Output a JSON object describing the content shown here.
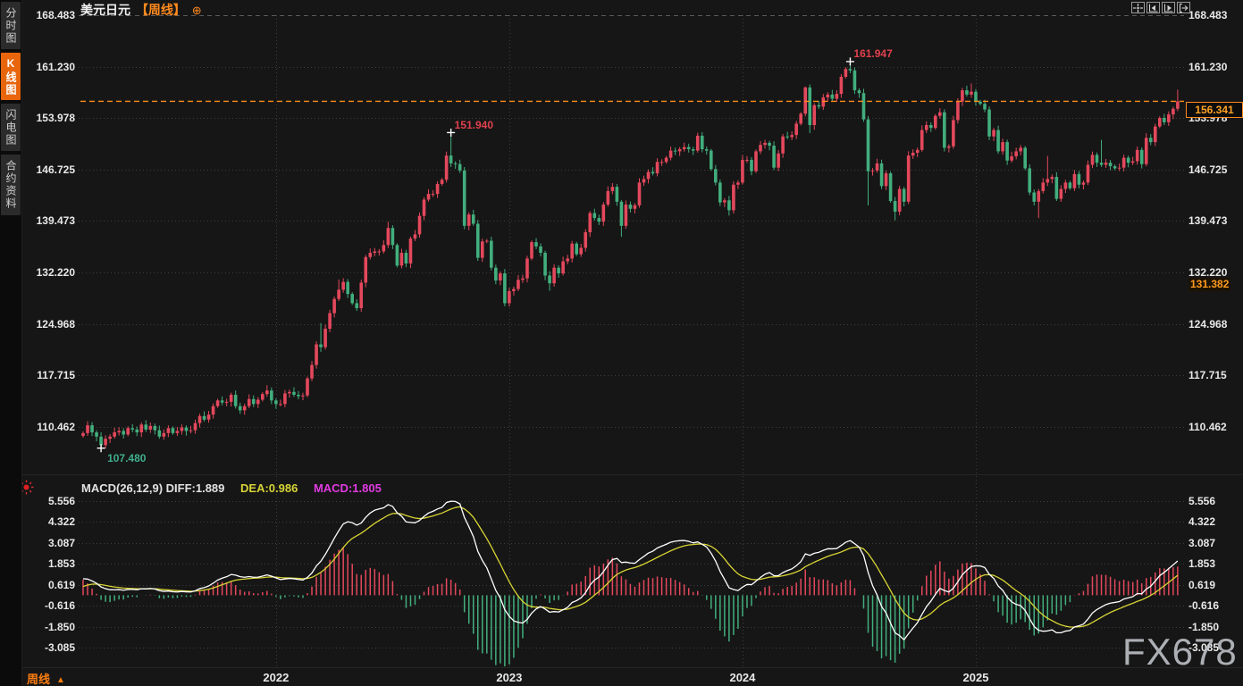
{
  "header": {
    "title": "美元日元",
    "period": "【周线】",
    "add_icon": "⊕"
  },
  "sidebar": {
    "items": [
      {
        "label": "分时图",
        "active": false
      },
      {
        "label": "K线图",
        "active": true
      },
      {
        "label": "闪电图",
        "active": false
      },
      {
        "label": "合约资料",
        "active": false
      }
    ]
  },
  "toolbar": {
    "icons": [
      "move-crosshair",
      "compress-left",
      "compress-right",
      "go-to-latest"
    ]
  },
  "price_axis": {
    "ticks": [
      "168.483",
      "161.230",
      "153.978",
      "146.725",
      "139.473",
      "132.220",
      "124.968",
      "117.715",
      "110.462"
    ],
    "current_price": "156.341",
    "secondary_price": "131.382"
  },
  "macd_axis": {
    "ticks": [
      "5.556",
      "4.322",
      "3.087",
      "1.853",
      "0.619",
      "-0.616",
      "-1.850",
      "-3.085"
    ]
  },
  "macd_status": {
    "name_and_diff": "MACD(26,12,9) DIFF:1.889",
    "dea_label": "DEA:0.986",
    "macd_label": "MACD:1.805"
  },
  "annotations": {
    "high": {
      "week": 171,
      "price": 161.947,
      "label": "161.947"
    },
    "mid_high": {
      "week": 82,
      "price": 151.94,
      "label": "151.940"
    },
    "low": {
      "week": 4,
      "price": 107.48,
      "label": "107.480"
    }
  },
  "bottom": {
    "period_label": "周线",
    "period_arrow": "▲",
    "years": [
      {
        "label": "2022",
        "week": 43
      },
      {
        "label": "2023",
        "week": 95
      },
      {
        "label": "2024",
        "week": 147
      },
      {
        "label": "2025",
        "week": 199
      }
    ]
  },
  "watermark": "FX678",
  "colors": {
    "up": "#e4485c",
    "down": "#42ae7d",
    "accent": "#ff8c1a",
    "diff_line": "#ffffff",
    "dea_line": "#d8d435",
    "macd_text": "#e03ae0",
    "grid": "#3e3e3e",
    "grid_top": "#5a5a5a",
    "axis_text": "#e8e8e8",
    "bg": "#161616"
  },
  "chart_data": {
    "type": "candlestick",
    "symbol": "美元日元",
    "interval": "周线",
    "ylim": [
      110.462,
      168.483
    ],
    "macd_ylim": [
      -3.085,
      5.556
    ],
    "first_open": 109.2,
    "closes": [
      109.6,
      110.7,
      109.7,
      109.1,
      107.9,
      108.8,
      109.1,
      109.7,
      109.9,
      109.4,
      110.3,
      110.1,
      109.7,
      110.8,
      110.1,
      110.6,
      110.0,
      109.1,
      109.6,
      110.3,
      109.6,
      109.9,
      110.4,
      109.9,
      110.0,
      111.0,
      112.0,
      111.5,
      112.2,
      113.4,
      114.2,
      113.9,
      114.0,
      115.0,
      113.4,
      112.8,
      113.4,
      114.4,
      113.7,
      114.3,
      115.1,
      115.6,
      114.2,
      113.7,
      113.7,
      115.2,
      115.4,
      115.0,
      114.8,
      114.9,
      117.3,
      119.2,
      122.1,
      121.7,
      124.3,
      126.5,
      128.5,
      129.8,
      130.9,
      129.2,
      127.9,
      127.2,
      130.8,
      134.4,
      135.0,
      135.2,
      135.2,
      136.1,
      138.5,
      136.1,
      133.2,
      135.0,
      133.5,
      137.0,
      137.6,
      140.2,
      142.5,
      143.3,
      143.3,
      144.7,
      145.3,
      148.7,
      147.6,
      147.5,
      146.6,
      138.8,
      140.4,
      139.1,
      134.3,
      136.6,
      136.7,
      132.9,
      131.1,
      132.1,
      127.9,
      129.6,
      129.9,
      131.2,
      131.4,
      134.2,
      136.5,
      135.9,
      135.0,
      131.8,
      130.7,
      132.9,
      132.1,
      133.8,
      134.2,
      136.3,
      134.8,
      135.7,
      137.9,
      140.6,
      139.9,
      139.4,
      141.8,
      143.7,
      144.3,
      142.2,
      138.8,
      141.8,
      141.2,
      141.7,
      144.9,
      145.4,
      146.4,
      146.2,
      147.8,
      147.8,
      148.4,
      149.4,
      149.3,
      149.6,
      149.9,
      149.6,
      149.4,
      151.5,
      149.6,
      149.4,
      146.8,
      144.9,
      142.1,
      142.4,
      141.0,
      144.6,
      144.9,
      148.1,
      148.1,
      146.5,
      149.3,
      150.2,
      150.5,
      150.1,
      147.0,
      149.0,
      151.4,
      151.3,
      151.6,
      153.2,
      154.6,
      158.3,
      153.0,
      155.8,
      155.6,
      156.9,
      157.3,
      156.7,
      157.4,
      159.8,
      160.9,
      160.7,
      157.9,
      157.5,
      153.8,
      146.5,
      146.6,
      147.6,
      144.4,
      146.2,
      142.3,
      140.8,
      144.0,
      142.2,
      148.7,
      149.1,
      149.5,
      152.3,
      153.0,
      152.6,
      154.3,
      154.8,
      149.8,
      150.0,
      153.7,
      156.3,
      157.9,
      157.3,
      157.7,
      156.3,
      156.0,
      155.2,
      151.4,
      152.3,
      149.3,
      150.6,
      148.0,
      148.6,
      149.3,
      149.8,
      146.9,
      143.5,
      142.2,
      143.7,
      144.9,
      145.4,
      145.7,
      142.6,
      144.0,
      144.9,
      144.1,
      146.1,
      144.6,
      144.9,
      147.4,
      148.8,
      147.7,
      147.4,
      147.7,
      147.2,
      146.9,
      147.0,
      148.4,
      147.7,
      147.9,
      149.5,
      147.5,
      151.2,
      150.6,
      152.8,
      154.0,
      153.4,
      154.5,
      155.3,
      156.341
    ],
    "extreme_overrides": {
      "4": {
        "low": 107.48
      },
      "41": {
        "high": 116.35
      },
      "53": {
        "high": 125.1
      },
      "57": {
        "high": 131.25
      },
      "68": {
        "high": 139.38
      },
      "82": {
        "high": 151.94
      },
      "94": {
        "low": 127.46
      },
      "104": {
        "low": 129.64
      },
      "120": {
        "low": 137.25
      },
      "137": {
        "high": 151.91
      },
      "144": {
        "low": 140.25
      },
      "161": {
        "high": 158.44
      },
      "162": {
        "low": 151.86
      },
      "171": {
        "high": 161.947
      },
      "175": {
        "low": 141.68
      },
      "181": {
        "low": 139.58
      },
      "198": {
        "high": 158.87
      },
      "213": {
        "low": 139.89
      },
      "215": {
        "high": 148.65
      },
      "227": {
        "high": 150.92
      },
      "244": {
        "high": 158.0
      }
    },
    "indicator": {
      "type": "MACD",
      "params": [
        26,
        12,
        9
      ],
      "histogram_scale": 2
    }
  }
}
